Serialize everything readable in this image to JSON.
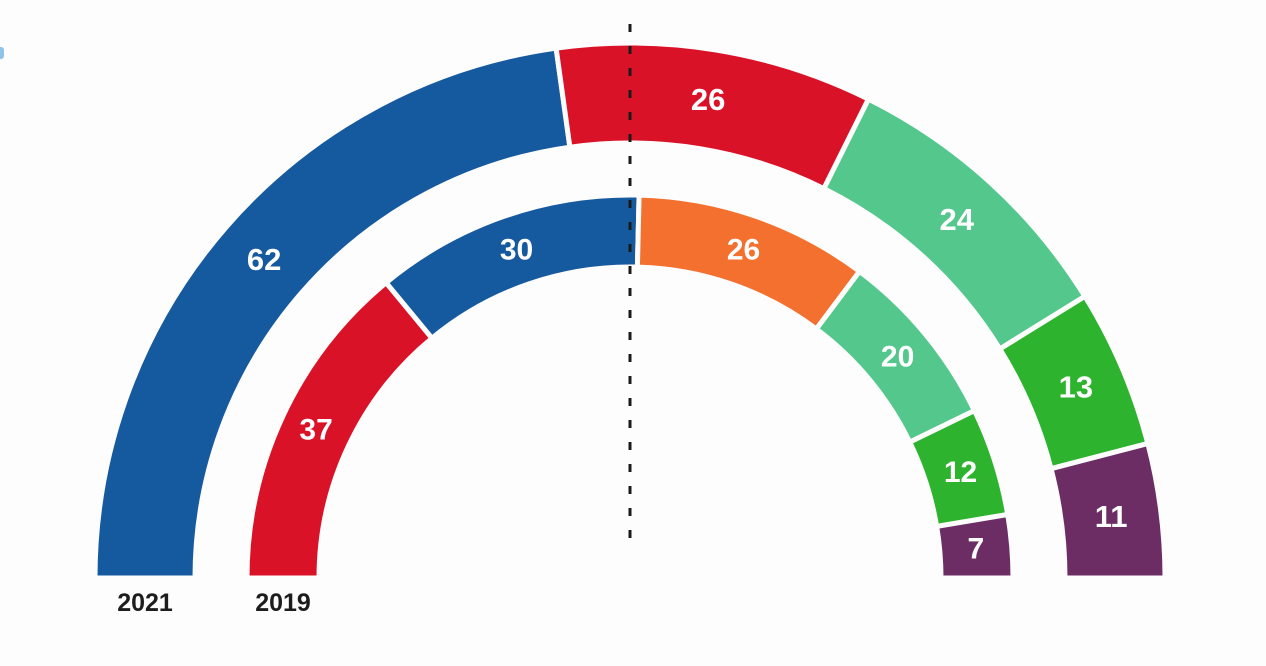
{
  "chart_data": {
    "type": "pie",
    "variant": "semicircle-double-donut",
    "title": "",
    "start_angle": -90,
    "end_angle": 90,
    "legend_position": "below-arc-ends",
    "grid": false,
    "data_label_color": "#ffffff",
    "year_label_color": "#1d1d1d",
    "divider": {
      "description": "vertical dotted line at chart center",
      "color": "#1a1a1a"
    },
    "rings": [
      {
        "name": "2021",
        "position": "outer",
        "total": 136,
        "segments": [
          {
            "value": 62,
            "color": "#15599e"
          },
          {
            "value": 26,
            "color": "#da1228"
          },
          {
            "value": 24,
            "color": "#54c88c"
          },
          {
            "value": 13,
            "color": "#2db32d"
          },
          {
            "value": 11,
            "color": "#6c2c64"
          }
        ]
      },
      {
        "name": "2019",
        "position": "inner",
        "total": 132,
        "segments": [
          {
            "value": 37,
            "color": "#da1228"
          },
          {
            "value": 30,
            "color": "#15599e"
          },
          {
            "value": 26,
            "color": "#f4702e"
          },
          {
            "value": 20,
            "color": "#54c88c"
          },
          {
            "value": 12,
            "color": "#2db32d"
          },
          {
            "value": 7,
            "color": "#6c2c64"
          }
        ]
      }
    ]
  }
}
